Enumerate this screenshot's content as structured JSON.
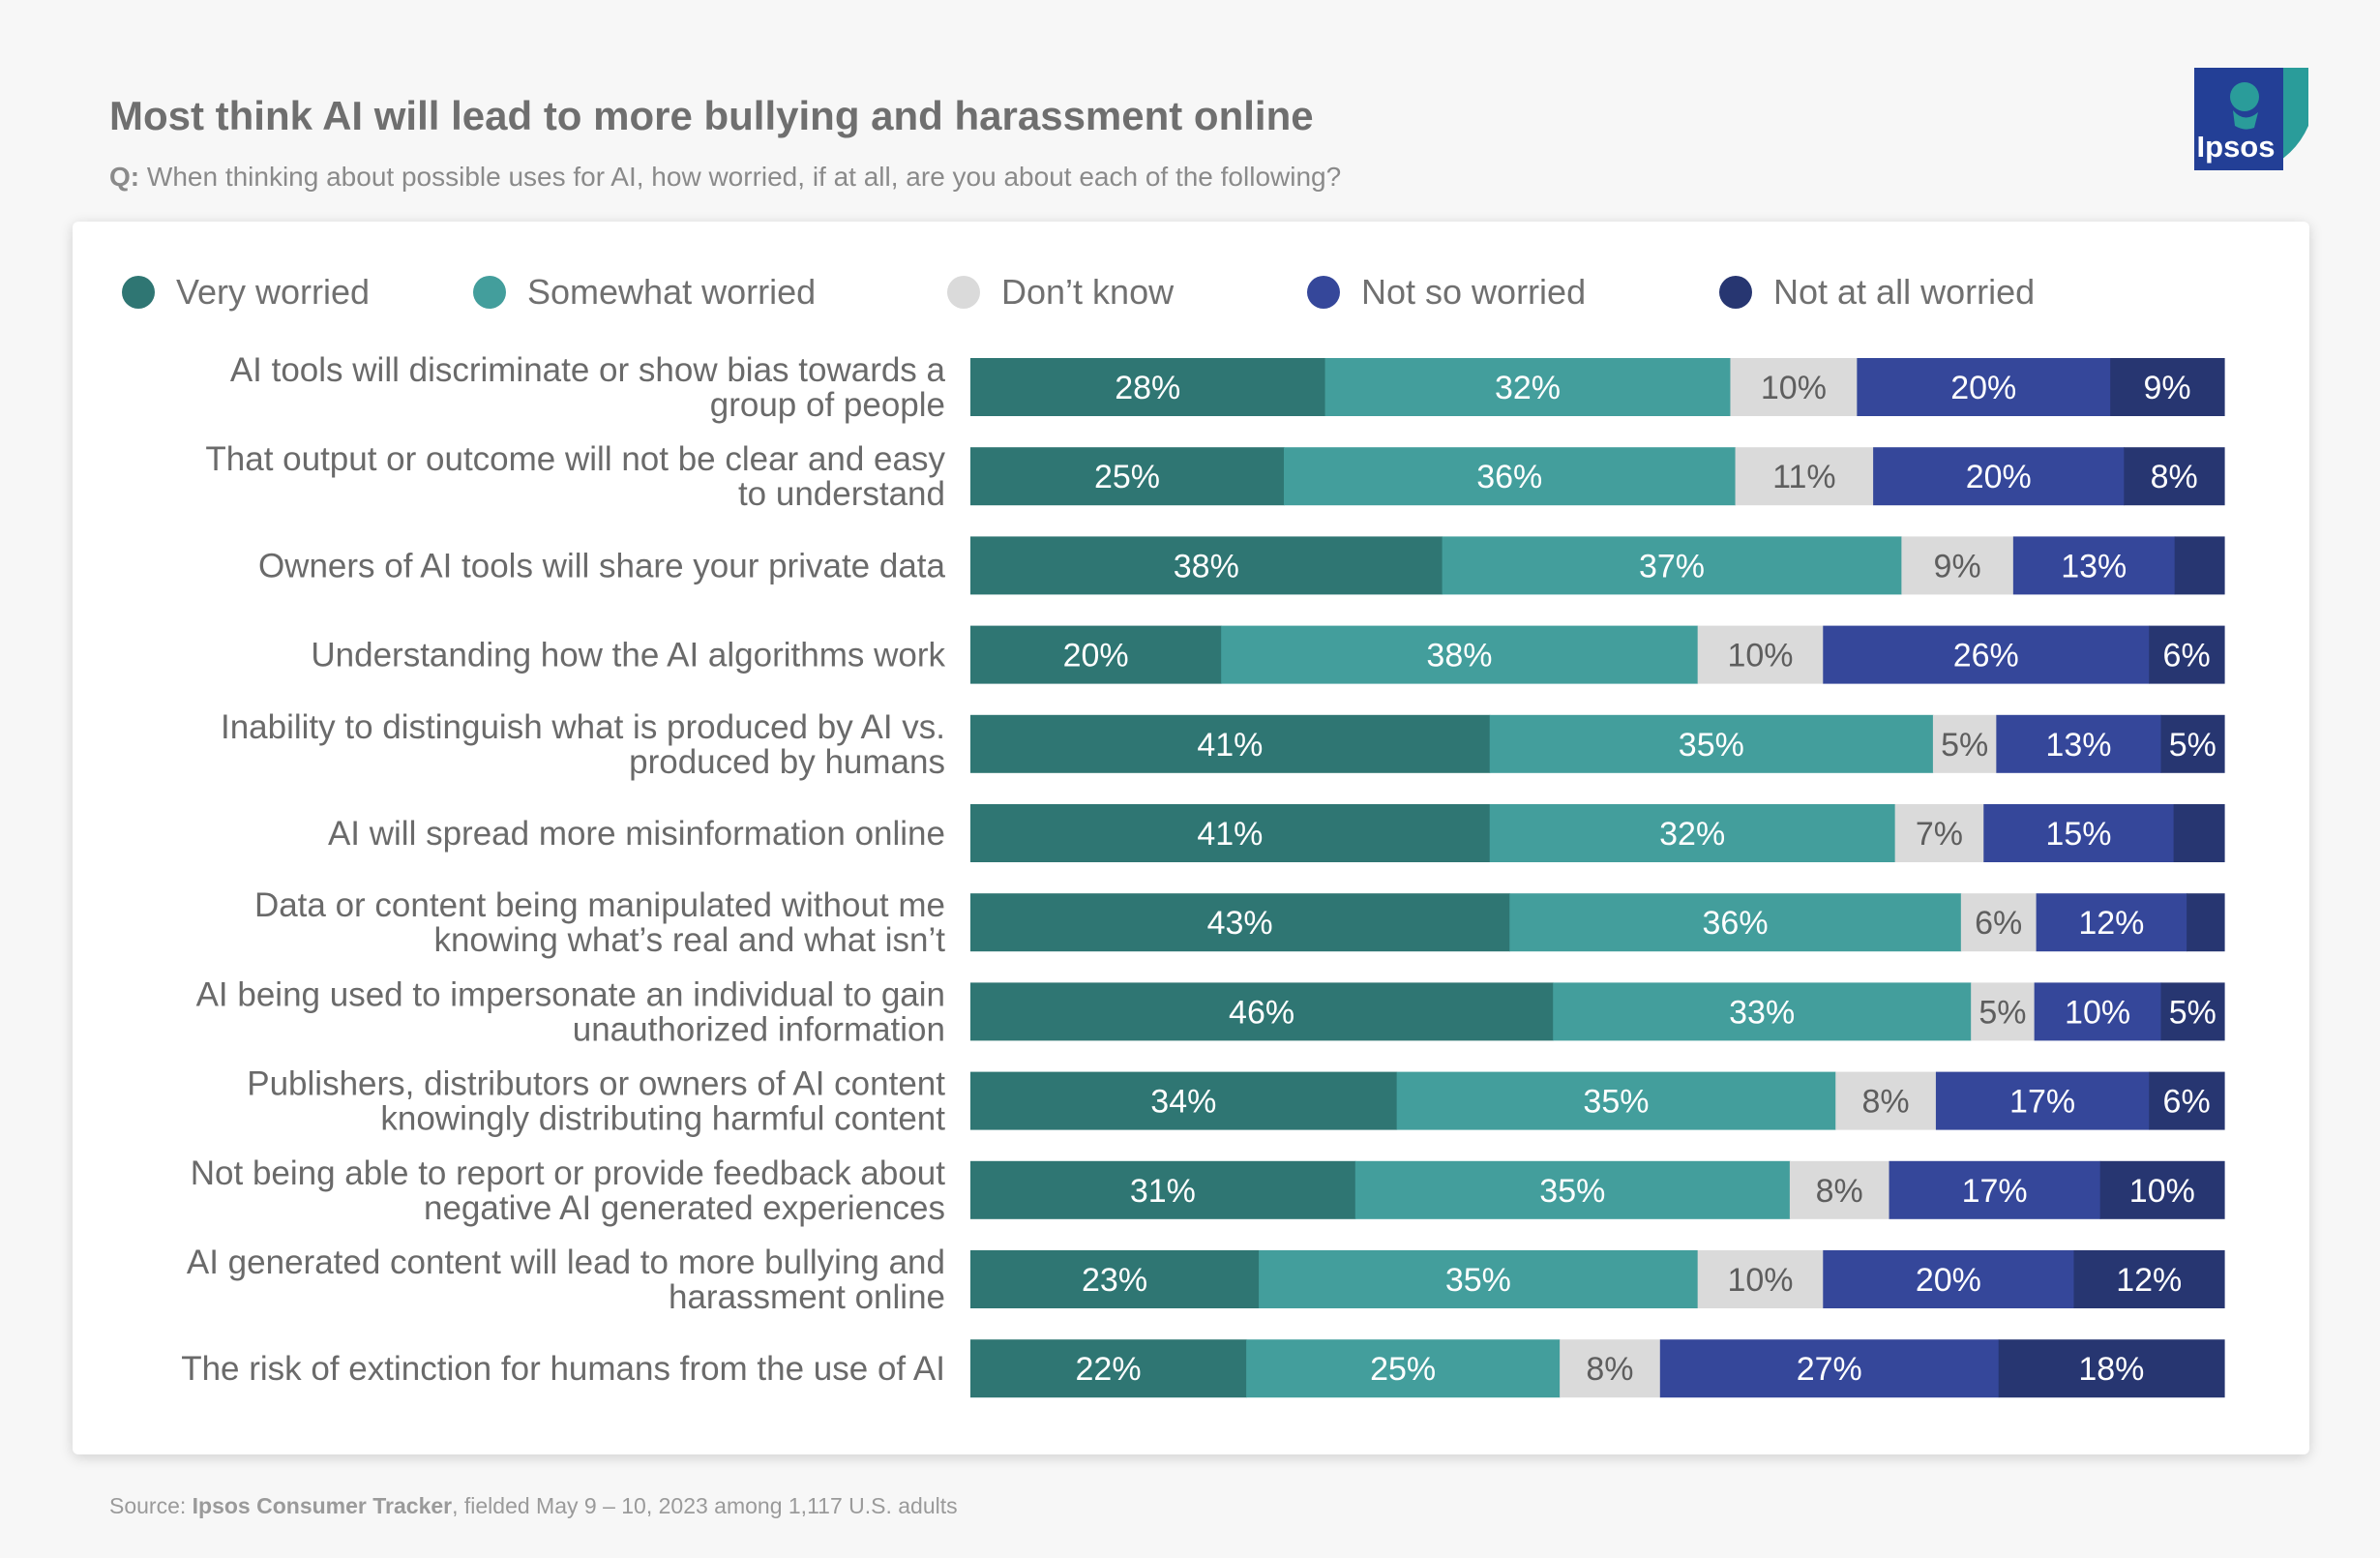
{
  "header": {
    "title": "Most think AI will lead to more bullying and harassment online",
    "question_label": "Q:",
    "question_text": " When thinking about possible uses for AI, how worried, if at all, are you about each of the following?"
  },
  "logo": {
    "text": "Ipsos",
    "icon": "ipsos-logo-icon",
    "color": "#2a9c9a",
    "bg": "#233f96"
  },
  "footer": {
    "prefix": "Source: ",
    "source_name": "Ipsos Consumer Tracker",
    "suffix": ", fielded May 9 – 10, 2023 among 1,117 U.S. adults"
  },
  "chart_data": {
    "type": "bar",
    "orientation": "horizontal",
    "stacked": true,
    "value_format": "percent",
    "legend_position": "top",
    "series": [
      {
        "name": "Very worried",
        "color": "#2f7673",
        "text_color": "#ffffff",
        "values": [
          28,
          25,
          38,
          20,
          41,
          41,
          43,
          46,
          34,
          31,
          23,
          22
        ]
      },
      {
        "name": "Somewhat worried",
        "color": "#439e9c",
        "text_color": "#ffffff",
        "values": [
          32,
          36,
          37,
          38,
          35,
          32,
          36,
          33,
          35,
          35,
          35,
          25
        ]
      },
      {
        "name": "Don’t know",
        "color": "#dadada",
        "text_color": "#5e5e5e",
        "values": [
          10,
          11,
          9,
          10,
          5,
          7,
          6,
          5,
          8,
          8,
          10,
          8
        ]
      },
      {
        "name": "Not so worried",
        "color": "#35479a",
        "text_color": "#ffffff",
        "values": [
          20,
          20,
          13,
          26,
          13,
          15,
          12,
          10,
          17,
          17,
          20,
          27
        ]
      },
      {
        "name": "Not at all worried",
        "color": "#273671",
        "text_color": "#ffffff",
        "values": [
          9,
          8,
          4,
          6,
          5,
          4,
          3,
          5,
          6,
          10,
          12,
          18
        ],
        "value_labels": [
          "9%",
          "8%",
          "",
          "6%",
          "5%",
          "",
          "",
          "5%",
          "6%",
          "10%",
          "12%",
          "18%"
        ]
      }
    ],
    "categories": [
      [
        "AI tools will discriminate or show bias towards a",
        "group of people"
      ],
      [
        "That output or outcome will not be clear and easy",
        "to understand"
      ],
      [
        "Owners of AI tools will share your private data"
      ],
      [
        "Understanding how the AI algorithms work"
      ],
      [
        "Inability to distinguish what is produced by AI vs.",
        "produced by humans"
      ],
      [
        "AI will spread more misinformation online"
      ],
      [
        "Data or content being manipulated without me",
        "knowing what’s real and what isn’t"
      ],
      [
        "AI being used to impersonate an individual to gain",
        "unauthorized information"
      ],
      [
        "Publishers, distributors or owners of AI content",
        "knowingly distributing harmful content"
      ],
      [
        "Not being able to report or provide feedback about",
        "negative AI generated experiences"
      ],
      [
        "AI generated content will lead to more bullying and",
        "harassment online"
      ],
      [
        "The risk of extinction for humans from the use of AI"
      ]
    ]
  }
}
